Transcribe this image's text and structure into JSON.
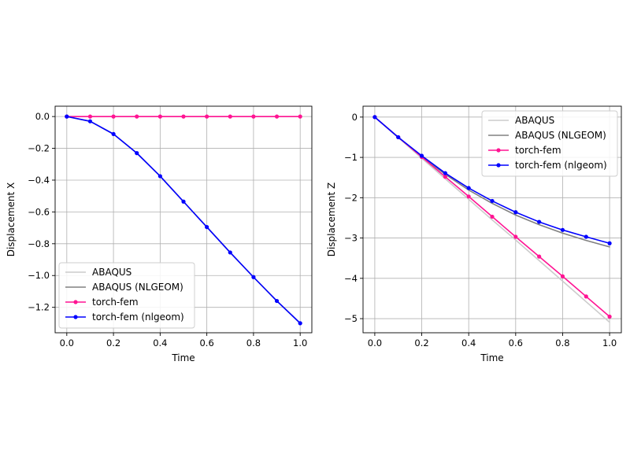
{
  "chart_data": [
    {
      "type": "line",
      "title": "",
      "xlabel": "Time",
      "ylabel": "Displacement X",
      "xlim": [
        -0.05,
        1.05
      ],
      "ylim": [
        -1.36,
        0.065
      ],
      "xticks": [
        0.0,
        0.2,
        0.4,
        0.6,
        0.8,
        1.0
      ],
      "xtick_labels": [
        "0.0",
        "0.2",
        "0.4",
        "0.6",
        "0.8",
        "1.0"
      ],
      "yticks": [
        0.0,
        -0.2,
        -0.4,
        -0.6,
        -0.8,
        -1.0,
        -1.2
      ],
      "ytick_labels": [
        "0.0",
        "−0.2",
        "−0.4",
        "−0.6",
        "−0.8",
        "−1.0",
        "−1.2"
      ],
      "grid": true,
      "legend_position": "bottom-left",
      "series": [
        {
          "name": "ABAQUS",
          "color": "#cccccc",
          "marker": false,
          "x": [
            0.0,
            0.1,
            0.2,
            0.3,
            0.4,
            0.5,
            0.6,
            0.7,
            0.8,
            0.9,
            1.0
          ],
          "y": [
            0.0,
            0.0,
            0.0,
            0.0,
            0.0,
            0.0,
            0.0,
            0.0,
            0.0,
            0.0,
            0.0
          ]
        },
        {
          "name": "ABAQUS (NLGEOM)",
          "color": "#808080",
          "marker": false,
          "x": [
            0.0,
            0.1,
            0.2,
            0.3,
            0.4,
            0.5,
            0.6,
            0.7,
            0.8,
            0.9,
            1.0
          ],
          "y": [
            0.0,
            -0.03,
            -0.11,
            -0.23,
            -0.375,
            -0.535,
            -0.695,
            -0.855,
            -1.01,
            -1.16,
            -1.3
          ]
        },
        {
          "name": "torch-fem",
          "color": "#ff1493",
          "marker": true,
          "x": [
            0.0,
            0.1,
            0.2,
            0.3,
            0.4,
            0.5,
            0.6,
            0.7,
            0.8,
            0.9,
            1.0
          ],
          "y": [
            0.0,
            0.0,
            0.0,
            0.0,
            0.0,
            0.0,
            0.0,
            0.0,
            0.0,
            0.0,
            0.0
          ]
        },
        {
          "name": "torch-fem (nlgeom)",
          "color": "#0000ff",
          "marker": true,
          "x": [
            0.0,
            0.1,
            0.2,
            0.3,
            0.4,
            0.5,
            0.6,
            0.7,
            0.8,
            0.9,
            1.0
          ],
          "y": [
            0.0,
            -0.03,
            -0.11,
            -0.23,
            -0.375,
            -0.535,
            -0.695,
            -0.855,
            -1.01,
            -1.16,
            -1.3
          ]
        }
      ]
    },
    {
      "type": "line",
      "title": "",
      "xlabel": "Time",
      "ylabel": "Displacement Z",
      "xlim": [
        -0.05,
        1.05
      ],
      "ylim": [
        -5.35,
        0.27
      ],
      "xticks": [
        0.0,
        0.2,
        0.4,
        0.6,
        0.8,
        1.0
      ],
      "xtick_labels": [
        "0.0",
        "0.2",
        "0.4",
        "0.6",
        "0.8",
        "1.0"
      ],
      "yticks": [
        0,
        -1,
        -2,
        -3,
        -4,
        -5
      ],
      "ytick_labels": [
        "0",
        "−1",
        "−2",
        "−3",
        "−4",
        "−5"
      ],
      "grid": true,
      "legend_position": "top-right",
      "series": [
        {
          "name": "ABAQUS",
          "color": "#cccccc",
          "marker": false,
          "x": [
            0.0,
            0.1,
            0.2,
            0.3,
            0.4,
            0.5,
            0.6,
            0.7,
            0.8,
            0.9,
            1.0
          ],
          "y": [
            0.0,
            -0.51,
            -1.02,
            -1.53,
            -2.04,
            -2.55,
            -3.05,
            -3.56,
            -4.07,
            -4.58,
            -5.09
          ]
        },
        {
          "name": "ABAQUS (NLGEOM)",
          "color": "#808080",
          "marker": false,
          "x": [
            0.0,
            0.1,
            0.2,
            0.3,
            0.4,
            0.5,
            0.6,
            0.7,
            0.8,
            0.9,
            1.0
          ],
          "y": [
            0.0,
            -0.5,
            -0.98,
            -1.42,
            -1.81,
            -2.14,
            -2.43,
            -2.67,
            -2.88,
            -3.06,
            -3.22
          ]
        },
        {
          "name": "torch-fem",
          "color": "#ff1493",
          "marker": true,
          "x": [
            0.0,
            0.1,
            0.2,
            0.3,
            0.4,
            0.5,
            0.6,
            0.7,
            0.8,
            0.9,
            1.0
          ],
          "y": [
            0.0,
            -0.5,
            -0.99,
            -1.48,
            -1.97,
            -2.47,
            -2.97,
            -3.46,
            -3.95,
            -4.45,
            -4.95
          ]
        },
        {
          "name": "torch-fem (nlgeom)",
          "color": "#0000ff",
          "marker": true,
          "x": [
            0.0,
            0.1,
            0.2,
            0.3,
            0.4,
            0.5,
            0.6,
            0.7,
            0.8,
            0.9,
            1.0
          ],
          "y": [
            0.0,
            -0.5,
            -0.96,
            -1.39,
            -1.76,
            -2.08,
            -2.36,
            -2.6,
            -2.8,
            -2.97,
            -3.13
          ]
        }
      ]
    }
  ]
}
